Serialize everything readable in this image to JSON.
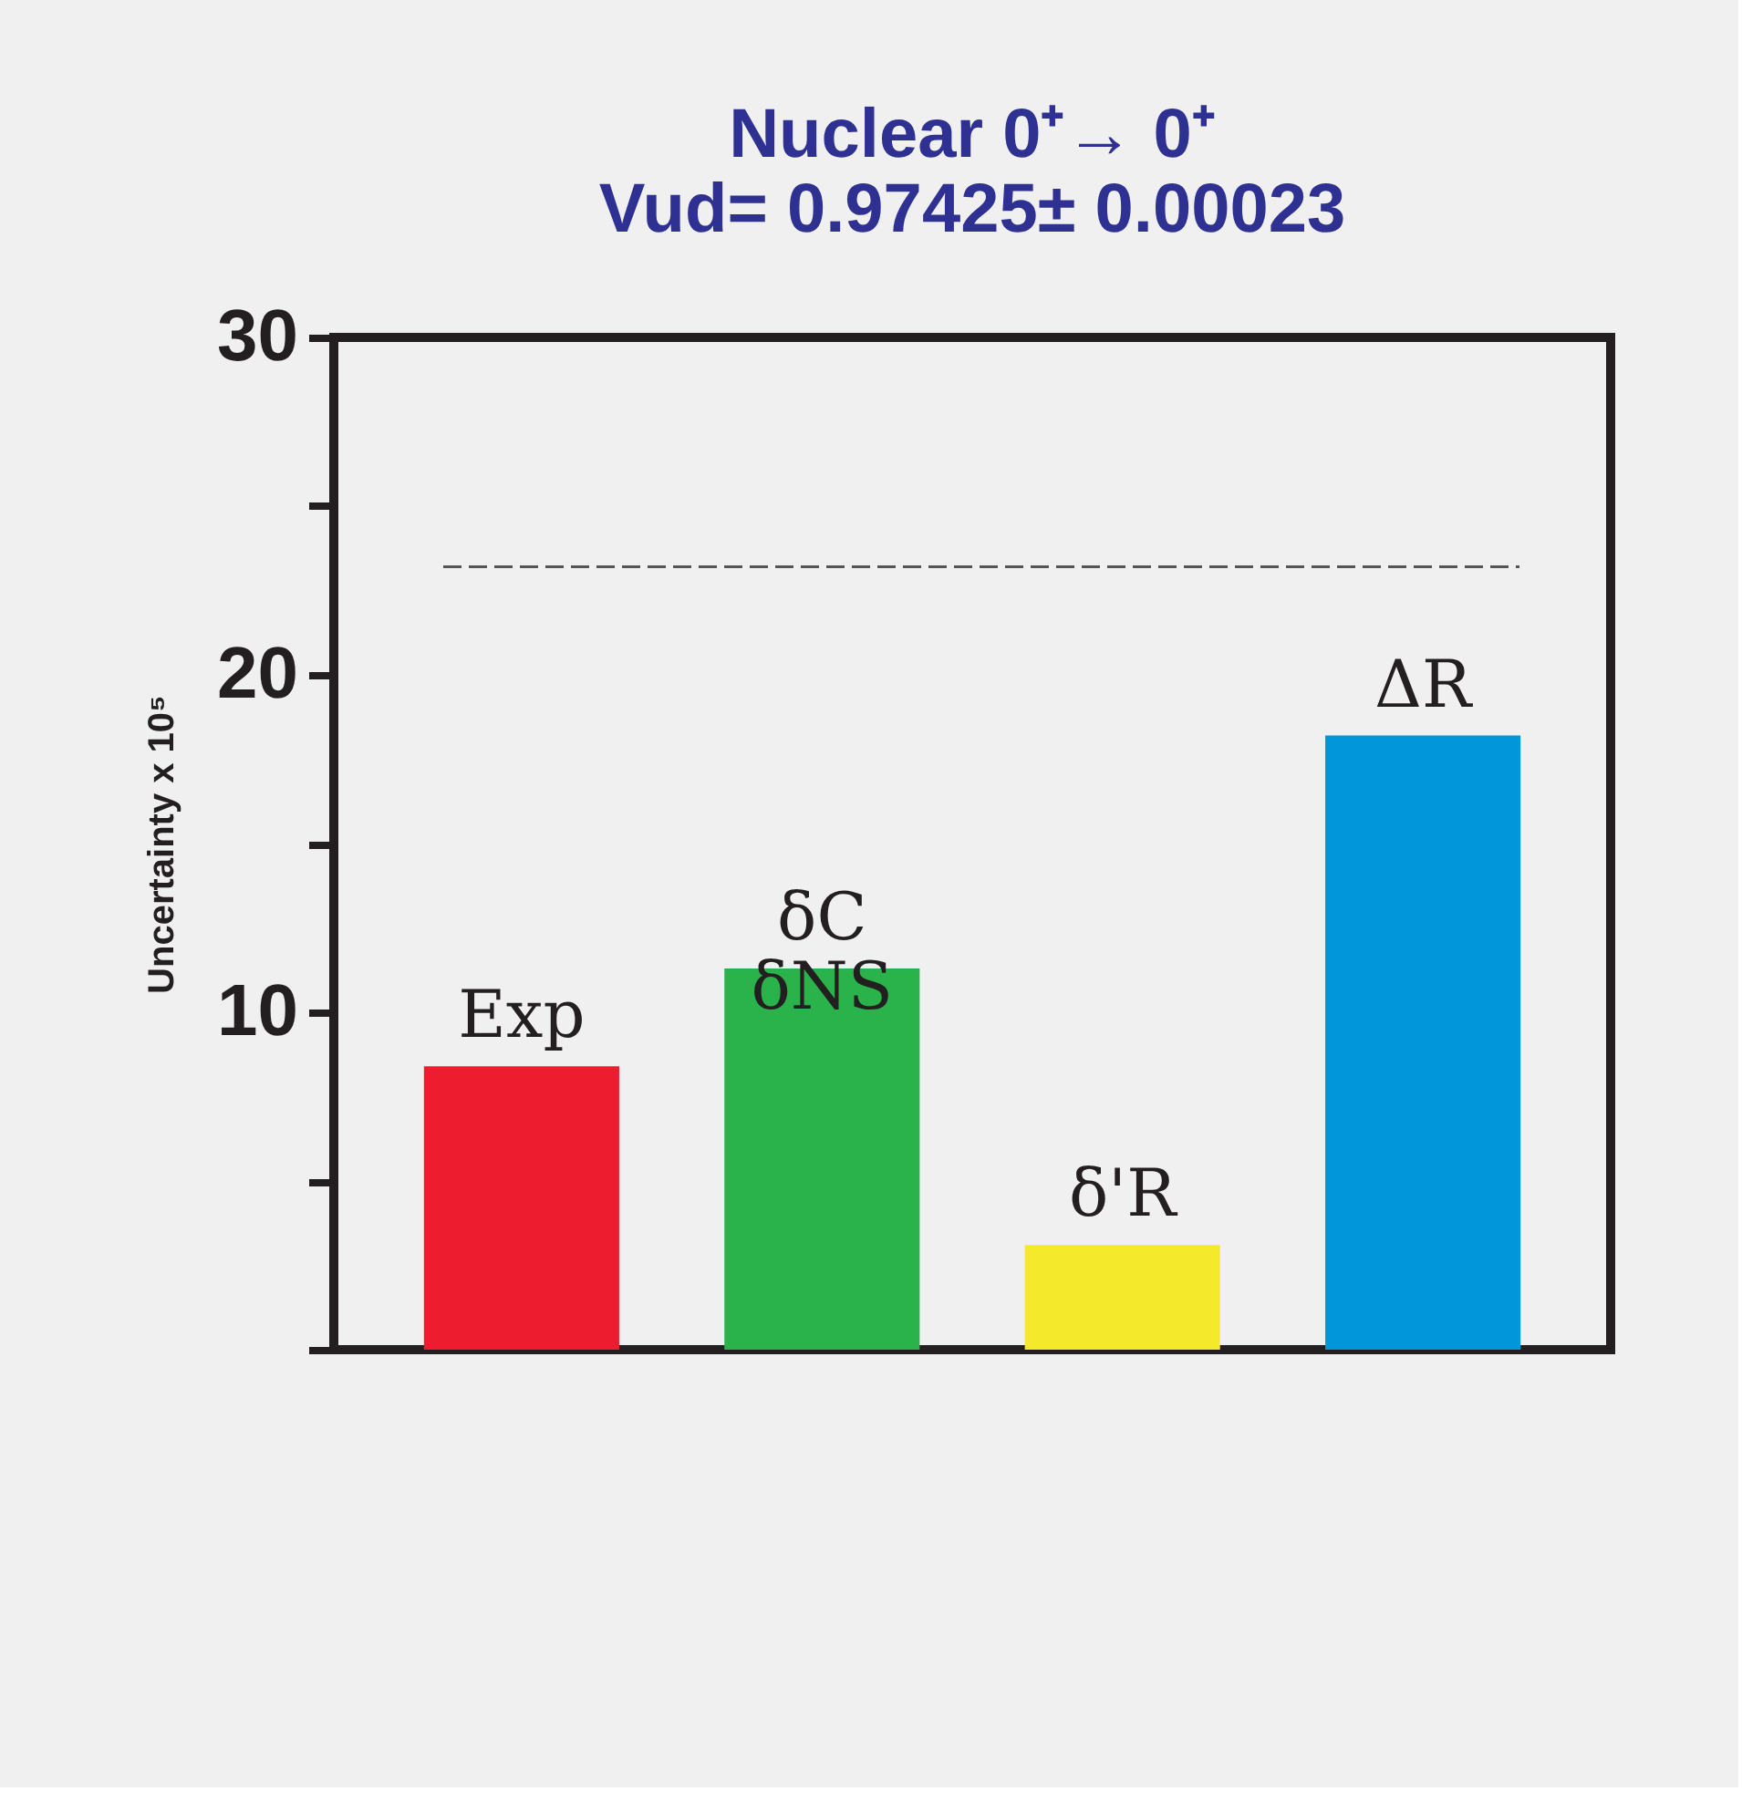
{
  "chart_data": {
    "type": "bar",
    "title": "Nuclear 0⁺→ 0⁺",
    "subtitle": "Vud= 0.97425± 0.00023",
    "ylabel": "Uncertainty x 10⁵",
    "categories": [
      "Exp",
      "δC δNS",
      "δ'R",
      "ΔR"
    ],
    "values": [
      8.4,
      11.3,
      3.1,
      18.2
    ],
    "colors": [
      "#ed1c2e",
      "#2ab34b",
      "#f5e92b",
      "#0096d9"
    ],
    "ylim": [
      0,
      30
    ],
    "yticks": [
      {
        "value": 0,
        "label": null
      },
      {
        "value": 5,
        "label": null
      },
      10,
      {
        "value": 15,
        "label": null
      },
      20,
      {
        "value": 25,
        "label": null
      },
      30
    ],
    "ref_lines": [
      {
        "axis": "y",
        "value": 23.2,
        "color": "#555555",
        "line_style": "dashed"
      }
    ],
    "grid": false
  }
}
